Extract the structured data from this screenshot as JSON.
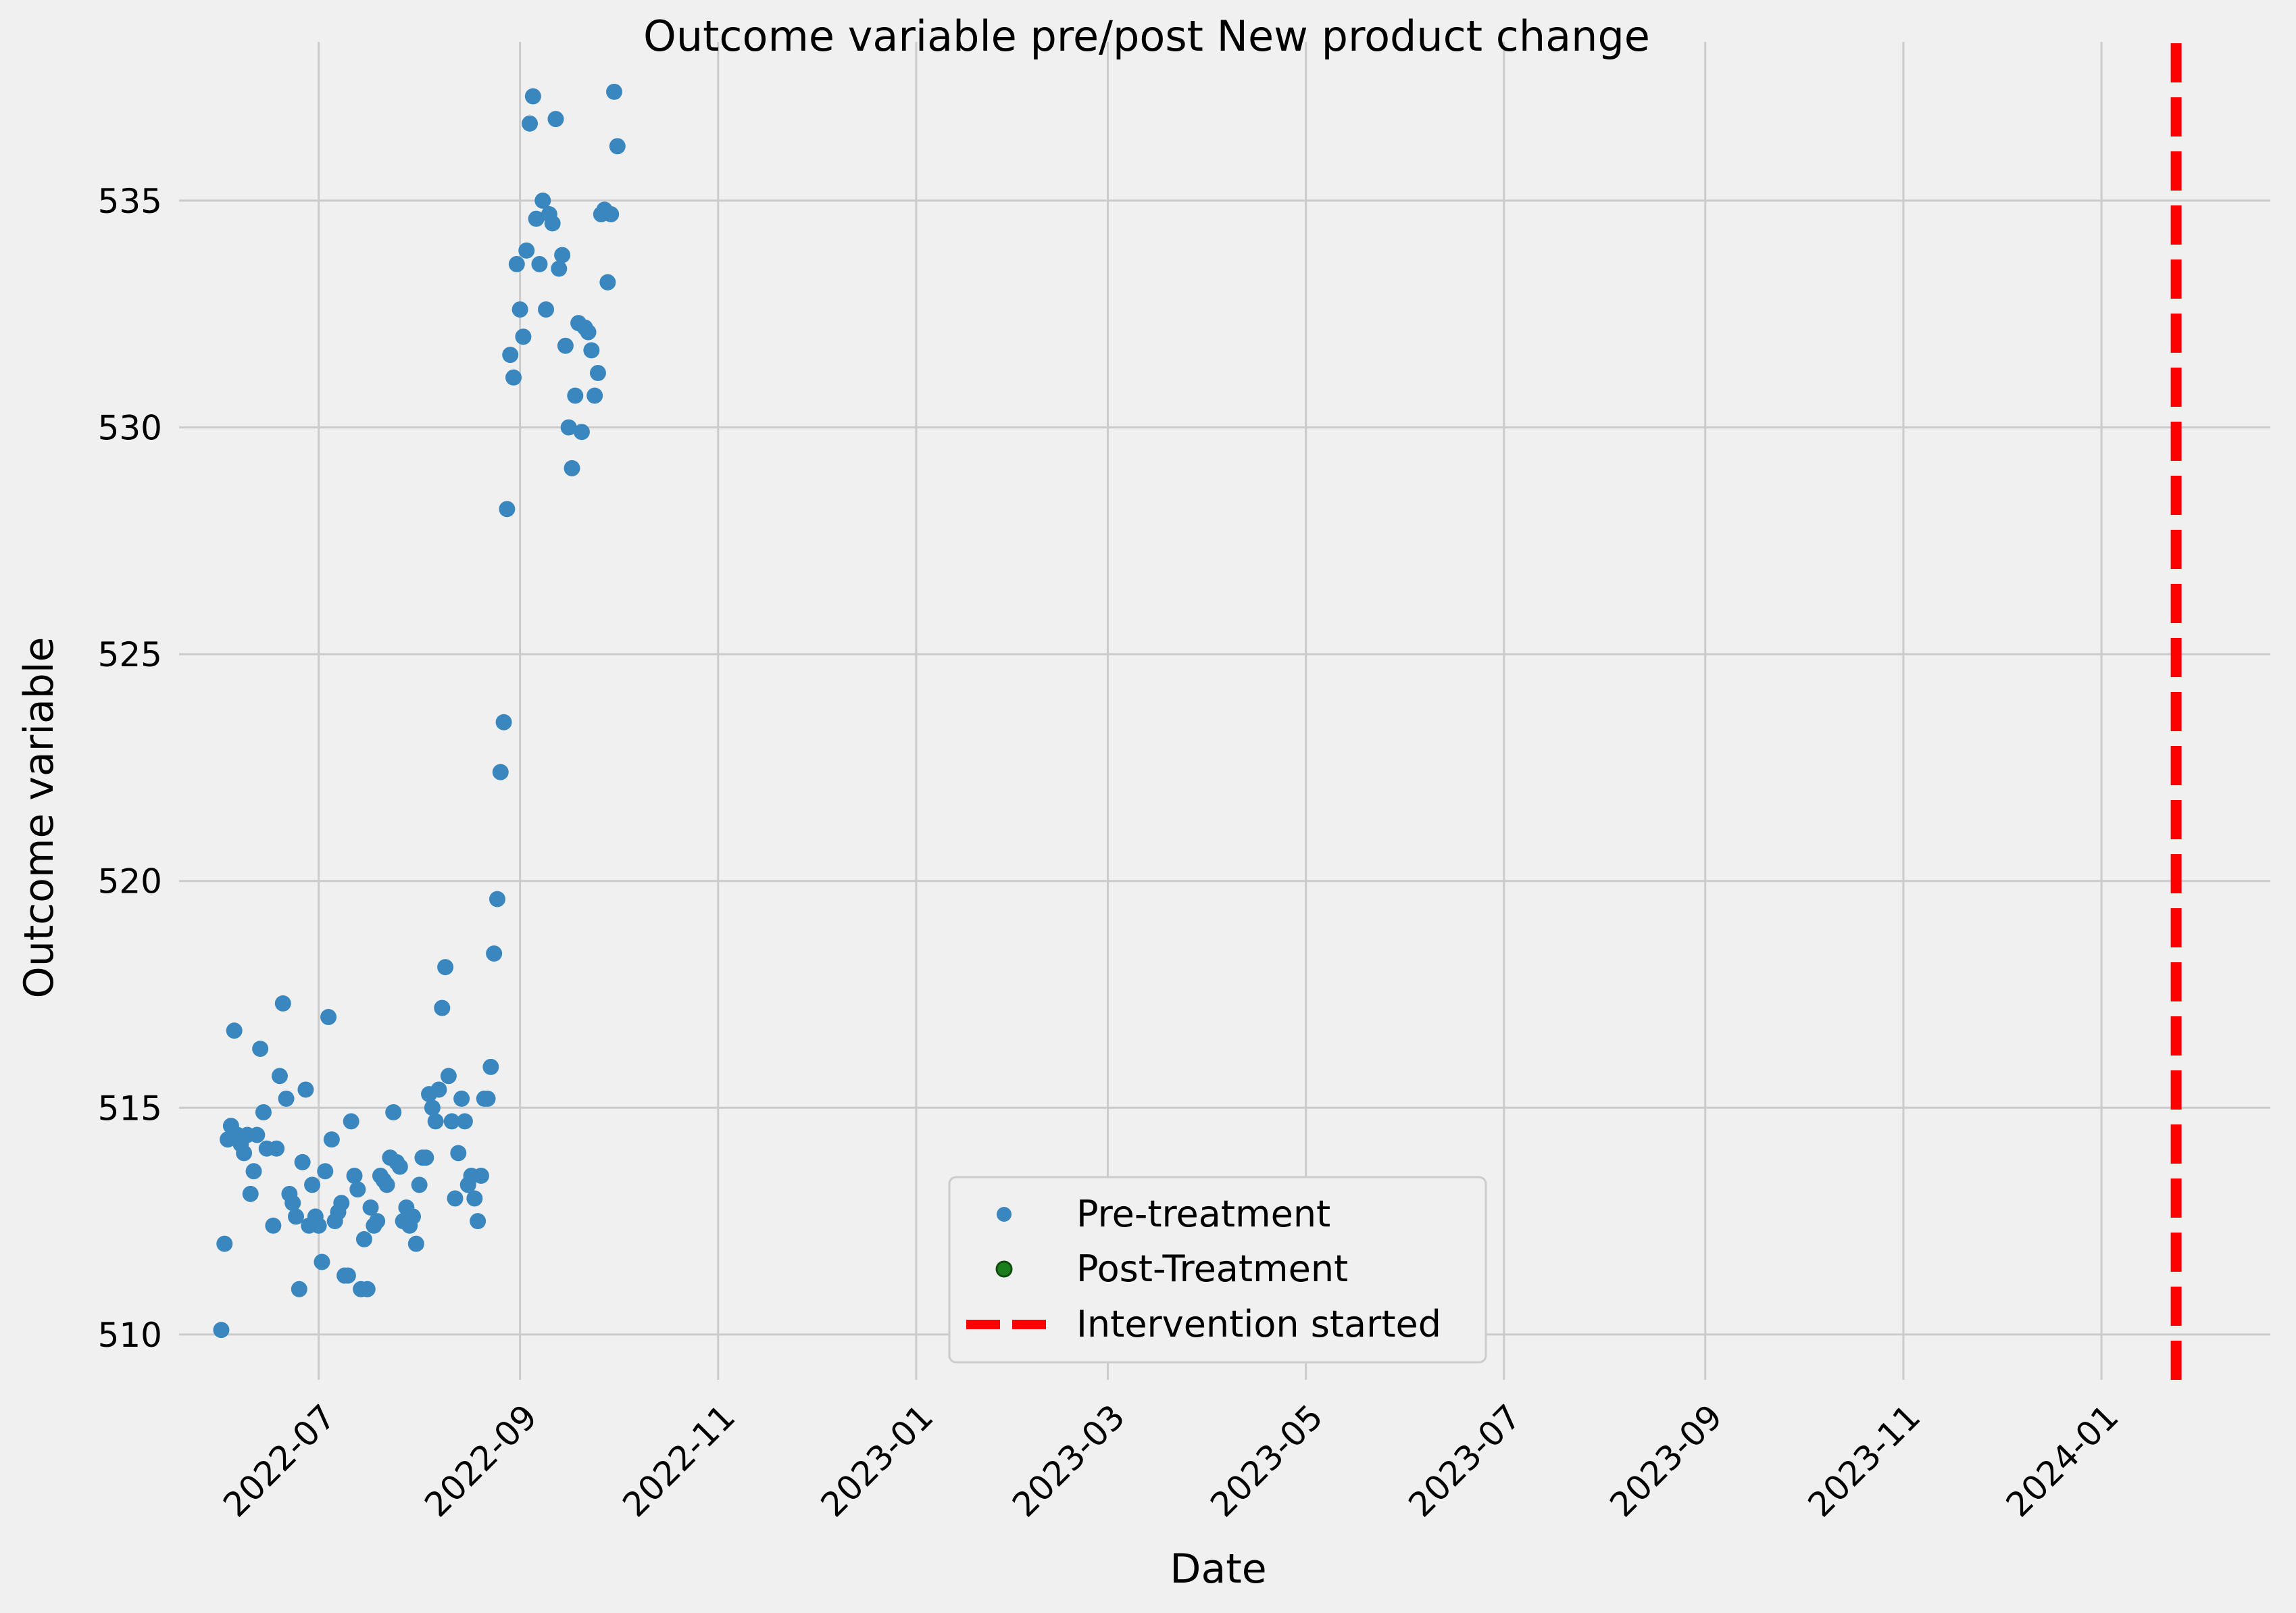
{
  "chart_data": {
    "type": "scatter",
    "title": "Outcome variable pre/post New product change",
    "xlabel": "Date",
    "ylabel": "Outcome variable",
    "x_axis_type": "date",
    "xlim": [
      "2022-05-19",
      "2024-02-22"
    ],
    "ylim": [
      509.0,
      538.5
    ],
    "x_ticks": [
      "2022-07-01",
      "2022-09-01",
      "2022-11-01",
      "2023-01-01",
      "2023-03-01",
      "2023-05-01",
      "2023-07-01",
      "2023-09-01",
      "2023-11-01",
      "2024-01-01"
    ],
    "x_tick_labels": [
      "2022-07",
      "2022-09",
      "2022-11",
      "2023-01",
      "2023-03",
      "2023-05",
      "2023-07",
      "2023-09",
      "2023-11",
      "2024-01"
    ],
    "y_ticks": [
      510,
      515,
      520,
      525,
      530,
      535
    ],
    "y_tick_labels": [
      "510",
      "515",
      "520",
      "525",
      "530",
      "535"
    ],
    "grid": true,
    "legend_position": "bottom-center",
    "colors": {
      "background": "#f0f0f0",
      "grid": "#cbcbcb",
      "pre": "#3a87c0",
      "post": "#1a7f1a",
      "intervention": "#ff0000"
    },
    "series": [
      {
        "name": "Pre-treatment",
        "kind": "scatter",
        "color": "#3a87c0",
        "points": [
          [
            "2022-06-01",
            510.1
          ],
          [
            "2022-06-02",
            512.0
          ],
          [
            "2022-06-03",
            514.3
          ],
          [
            "2022-06-04",
            514.6
          ],
          [
            "2022-06-05",
            516.7
          ],
          [
            "2022-06-06",
            514.4
          ],
          [
            "2022-06-07",
            514.2
          ],
          [
            "2022-06-08",
            514.0
          ],
          [
            "2022-06-09",
            514.4
          ],
          [
            "2022-06-10",
            513.1
          ],
          [
            "2022-06-11",
            513.6
          ],
          [
            "2022-06-12",
            514.4
          ],
          [
            "2022-06-13",
            516.3
          ],
          [
            "2022-06-14",
            514.9
          ],
          [
            "2022-06-15",
            514.1
          ],
          [
            "2022-06-17",
            512.4
          ],
          [
            "2022-06-18",
            514.1
          ],
          [
            "2022-06-19",
            515.7
          ],
          [
            "2022-06-20",
            517.3
          ],
          [
            "2022-06-21",
            515.2
          ],
          [
            "2022-06-22",
            513.1
          ],
          [
            "2022-06-23",
            512.9
          ],
          [
            "2022-06-24",
            512.6
          ],
          [
            "2022-06-25",
            511.0
          ],
          [
            "2022-06-26",
            513.8
          ],
          [
            "2022-06-27",
            515.4
          ],
          [
            "2022-06-28",
            512.4
          ],
          [
            "2022-06-29",
            513.3
          ],
          [
            "2022-06-30",
            512.6
          ],
          [
            "2022-07-01",
            512.4
          ],
          [
            "2022-07-02",
            511.6
          ],
          [
            "2022-07-03",
            513.6
          ],
          [
            "2022-07-04",
            517.0
          ],
          [
            "2022-07-05",
            514.3
          ],
          [
            "2022-07-06",
            512.5
          ],
          [
            "2022-07-07",
            512.7
          ],
          [
            "2022-07-08",
            512.9
          ],
          [
            "2022-07-09",
            511.3
          ],
          [
            "2022-07-10",
            511.3
          ],
          [
            "2022-07-11",
            514.7
          ],
          [
            "2022-07-12",
            513.5
          ],
          [
            "2022-07-13",
            513.2
          ],
          [
            "2022-07-14",
            511.0
          ],
          [
            "2022-07-15",
            512.1
          ],
          [
            "2022-07-16",
            511.0
          ],
          [
            "2022-07-17",
            512.8
          ],
          [
            "2022-07-18",
            512.4
          ],
          [
            "2022-07-19",
            512.5
          ],
          [
            "2022-07-20",
            513.5
          ],
          [
            "2022-07-21",
            513.4
          ],
          [
            "2022-07-22",
            513.3
          ],
          [
            "2022-07-23",
            513.9
          ],
          [
            "2022-07-24",
            514.9
          ],
          [
            "2022-07-25",
            513.8
          ],
          [
            "2022-07-26",
            513.7
          ],
          [
            "2022-07-27",
            512.5
          ],
          [
            "2022-07-28",
            512.8
          ],
          [
            "2022-07-29",
            512.4
          ],
          [
            "2022-07-30",
            512.6
          ],
          [
            "2022-07-31",
            512.0
          ],
          [
            "2022-08-01",
            513.3
          ],
          [
            "2022-08-02",
            513.9
          ],
          [
            "2022-08-03",
            513.9
          ],
          [
            "2022-08-04",
            515.3
          ],
          [
            "2022-08-05",
            515.0
          ],
          [
            "2022-08-06",
            514.7
          ],
          [
            "2022-08-07",
            515.4
          ],
          [
            "2022-08-08",
            517.2
          ],
          [
            "2022-08-09",
            518.1
          ],
          [
            "2022-08-10",
            515.7
          ],
          [
            "2022-08-11",
            514.7
          ],
          [
            "2022-08-12",
            513.0
          ],
          [
            "2022-08-13",
            514.0
          ],
          [
            "2022-08-14",
            515.2
          ],
          [
            "2022-08-15",
            514.7
          ],
          [
            "2022-08-16",
            513.3
          ],
          [
            "2022-08-17",
            513.5
          ],
          [
            "2022-08-18",
            513.0
          ],
          [
            "2022-08-19",
            512.5
          ],
          [
            "2022-08-20",
            513.5
          ],
          [
            "2022-08-21",
            515.2
          ],
          [
            "2022-08-22",
            515.2
          ],
          [
            "2022-08-23",
            515.9
          ],
          [
            "2022-08-24",
            518.4
          ],
          [
            "2022-08-25",
            519.6
          ],
          [
            "2022-08-26",
            522.4
          ],
          [
            "2022-08-27",
            523.5
          ],
          [
            "2022-08-28",
            528.2
          ],
          [
            "2022-08-29",
            531.6
          ],
          [
            "2022-08-30",
            531.1
          ],
          [
            "2022-08-31",
            533.6
          ],
          [
            "2022-09-01",
            532.6
          ],
          [
            "2022-09-02",
            532.0
          ],
          [
            "2022-09-03",
            533.9
          ],
          [
            "2022-09-04",
            536.7
          ],
          [
            "2022-09-05",
            537.3
          ],
          [
            "2022-09-06",
            534.6
          ],
          [
            "2022-09-07",
            533.6
          ],
          [
            "2022-09-08",
            535.0
          ],
          [
            "2022-09-09",
            532.6
          ],
          [
            "2022-09-10",
            534.7
          ],
          [
            "2022-09-11",
            534.5
          ],
          [
            "2022-09-12",
            536.8
          ],
          [
            "2022-09-13",
            533.5
          ],
          [
            "2022-09-14",
            533.8
          ],
          [
            "2022-09-15",
            531.8
          ],
          [
            "2022-09-16",
            530.0
          ],
          [
            "2022-09-17",
            529.1
          ],
          [
            "2022-09-18",
            530.7
          ],
          [
            "2022-09-19",
            532.3
          ],
          [
            "2022-09-20",
            529.9
          ],
          [
            "2022-09-21",
            532.2
          ],
          [
            "2022-09-22",
            532.1
          ],
          [
            "2022-09-23",
            531.7
          ],
          [
            "2022-09-24",
            530.7
          ],
          [
            "2022-09-25",
            531.2
          ],
          [
            "2022-09-26",
            534.7
          ],
          [
            "2022-09-27",
            534.8
          ],
          [
            "2022-09-28",
            533.2
          ],
          [
            "2022-09-29",
            534.7
          ],
          [
            "2022-09-30",
            537.4
          ],
          [
            "2022-10-01",
            536.2
          ]
        ]
      },
      {
        "name": "Post-Treatment",
        "kind": "scatter",
        "color": "#1a7f1a",
        "points": []
      },
      {
        "name": "Intervention started",
        "kind": "vline",
        "color": "#ff0000",
        "x": "2024-01-24",
        "style": "dashed"
      }
    ]
  }
}
